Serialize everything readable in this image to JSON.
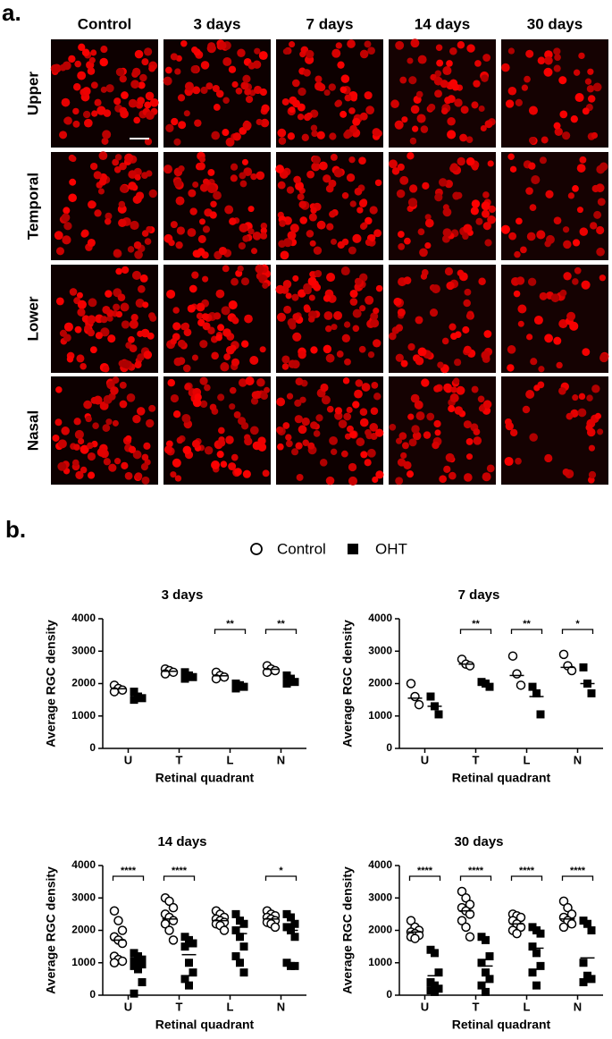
{
  "figure": {
    "panel_a_label": "a.",
    "panel_b_label": "b.",
    "columns": [
      "Control",
      "3 days",
      "7 days",
      "14 days",
      "30 days"
    ],
    "rows": [
      "Upper",
      "Temporal",
      "Lower",
      "Nasal"
    ]
  },
  "chart_data": [
    {
      "type": "scatter",
      "title": "3 days",
      "x_label": "Retinal quadrant",
      "y_label": "Average RGC density",
      "categories": [
        "U",
        "T",
        "L",
        "N"
      ],
      "ylim": [
        0,
        4000
      ],
      "yticks": [
        0,
        1000,
        2000,
        3000,
        4000
      ],
      "series": [
        {
          "name": "Control",
          "marker": "circle",
          "color": "#000000",
          "values": [
            [
              1950,
              1850,
              1800,
              1750
            ],
            [
              2450,
              2400,
              2350,
              2300
            ],
            [
              2350,
              2250,
              2200,
              2150
            ],
            [
              2550,
              2450,
              2400,
              2350
            ]
          ],
          "means": [
            1840,
            2380,
            2240,
            2440
          ]
        },
        {
          "name": "OHT",
          "marker": "square",
          "color": "#000000",
          "values": [
            [
              1750,
              1600,
              1550,
              1500
            ],
            [
              2350,
              2250,
              2200,
              2150
            ],
            [
              2000,
              1950,
              1900,
              1850
            ],
            [
              2250,
              2150,
              2050,
              2000
            ]
          ],
          "means": [
            1600,
            2240,
            1930,
            2110
          ]
        }
      ],
      "significance": [
        null,
        null,
        "**",
        "**"
      ]
    },
    {
      "type": "scatter",
      "title": "7 days",
      "x_label": "Retinal quadrant",
      "y_label": "Average RGC density",
      "categories": [
        "U",
        "T",
        "L",
        "N"
      ],
      "ylim": [
        0,
        4000
      ],
      "yticks": [
        0,
        1000,
        2000,
        3000,
        4000
      ],
      "series": [
        {
          "name": "Control",
          "marker": "circle",
          "color": "#000000",
          "values": [
            [
              2000,
              1600,
              1350
            ],
            [
              2750,
              2600,
              2550
            ],
            [
              2850,
              2300,
              1950
            ],
            [
              2900,
              2550,
              2400
            ]
          ],
          "means": [
            1550,
            2600,
            2250,
            2500
          ]
        },
        {
          "name": "OHT",
          "marker": "square",
          "color": "#000000",
          "values": [
            [
              1600,
              1300,
              1050
            ],
            [
              2050,
              2000,
              1900
            ],
            [
              1900,
              1700,
              1050
            ],
            [
              2500,
              2000,
              1700
            ]
          ],
          "means": [
            1300,
            1950,
            1600,
            2000
          ]
        }
      ],
      "significance": [
        null,
        "**",
        "**",
        "*"
      ]
    },
    {
      "type": "scatter",
      "title": "14 days",
      "x_label": "Retinal quadrant",
      "y_label": "Average RGC density",
      "categories": [
        "U",
        "T",
        "L",
        "N"
      ],
      "ylim": [
        0,
        4000
      ],
      "yticks": [
        0,
        1000,
        2000,
        3000,
        4000
      ],
      "series": [
        {
          "name": "Control",
          "marker": "circle",
          "color": "#000000",
          "values": [
            [
              2600,
              2300,
              2000,
              1800,
              1700,
              1600,
              1200,
              1100,
              1050,
              1000
            ],
            [
              3000,
              2900,
              2700,
              2500,
              2400,
              2300,
              2200,
              2000,
              1700
            ],
            [
              2600,
              2500,
              2400,
              2350,
              2300,
              2250,
              2200,
              2150,
              2000
            ],
            [
              2600,
              2500,
              2450,
              2400,
              2350,
              2300,
              2250,
              2200,
              2100
            ]
          ],
          "means": [
            1700,
            2350,
            2300,
            2350
          ]
        },
        {
          "name": "OHT",
          "marker": "square",
          "color": "#000000",
          "values": [
            [
              1300,
              1200,
              1100,
              1050,
              1000,
              950,
              900,
              800,
              400,
              50
            ],
            [
              1800,
              1700,
              1600,
              1500,
              1000,
              700,
              500,
              300
            ],
            [
              2500,
              2300,
              2200,
              2000,
              1800,
              1500,
              1200,
              1000,
              700
            ],
            [
              2500,
              2400,
              2200,
              2100,
              2000,
              1800,
              1000,
              900,
              900
            ]
          ],
          "means": [
            900,
            1250,
            1900,
            2000
          ]
        }
      ],
      "significance": [
        "****",
        "****",
        null,
        "*"
      ]
    },
    {
      "type": "scatter",
      "title": "30 days",
      "x_label": "Retinal quadrant",
      "y_label": "Average RGC density",
      "categories": [
        "U",
        "T",
        "L",
        "N"
      ],
      "ylim": [
        0,
        4000
      ],
      "yticks": [
        0,
        1000,
        2000,
        3000,
        4000
      ],
      "series": [
        {
          "name": "Control",
          "marker": "circle",
          "color": "#000000",
          "values": [
            [
              2300,
              2100,
              2000,
              1950,
              1900,
              1850,
              1800,
              1750
            ],
            [
              3200,
              3000,
              2800,
              2700,
              2600,
              2500,
              2300,
              2100,
              1800
            ],
            [
              2500,
              2450,
              2400,
              2300,
              2200,
              2100,
              2000,
              1900
            ],
            [
              2900,
              2700,
              2500,
              2400,
              2300,
              2200,
              2100
            ]
          ],
          "means": [
            1950,
            2600,
            2200,
            2350
          ]
        },
        {
          "name": "OHT",
          "marker": "square",
          "color": "#000000",
          "values": [
            [
              1400,
              1300,
              700,
              400,
              300,
              200,
              150,
              100
            ],
            [
              1800,
              1700,
              1200,
              1000,
              700,
              500,
              300,
              100
            ],
            [
              2100,
              2000,
              1900,
              1500,
              1300,
              900,
              700,
              300
            ],
            [
              2300,
              2200,
              2000,
              1000,
              600,
              500,
              400
            ]
          ],
          "means": [
            600,
            900,
            1450,
            1150
          ]
        }
      ],
      "significance": [
        "****",
        "****",
        "****",
        "****"
      ]
    }
  ]
}
